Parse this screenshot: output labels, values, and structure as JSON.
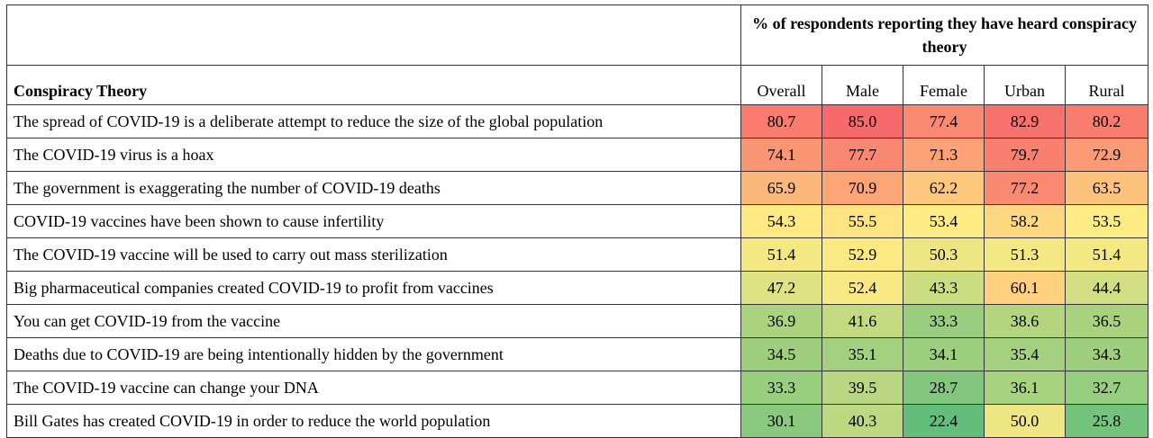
{
  "header": {
    "group_title": "% of respondents reporting they have heard conspiracy theory",
    "label_column": "Conspiracy Theory"
  },
  "chart_data": {
    "type": "table",
    "columns": [
      "Overall",
      "Male",
      "Female",
      "Urban",
      "Rural"
    ],
    "rows": [
      {
        "label": "The spread of COVID-19 is a deliberate attempt to reduce the size of the global population",
        "values": [
          "80.7",
          "85.0",
          "77.4",
          "82.9",
          "80.2"
        ]
      },
      {
        "label": "The COVID-19 virus is a hoax",
        "values": [
          "74.1",
          "77.7",
          "71.3",
          "79.7",
          "72.9"
        ]
      },
      {
        "label": "The government is exaggerating the number of COVID-19 deaths",
        "values": [
          "65.9",
          "70.9",
          "62.2",
          "77.2",
          "63.5"
        ]
      },
      {
        "label": "COVID-19 vaccines have been shown to cause infertility",
        "values": [
          "54.3",
          "55.5",
          "53.4",
          "58.2",
          "53.5"
        ]
      },
      {
        "label": "The COVID-19 vaccine will be used to carry out mass sterilization",
        "values": [
          "51.4",
          "52.9",
          "50.3",
          "51.3",
          "51.4"
        ]
      },
      {
        "label": "Big pharmaceutical companies created COVID-19 to profit from vaccines",
        "values": [
          "47.2",
          "52.4",
          "43.3",
          "60.1",
          "44.4"
        ]
      },
      {
        "label": "You can get COVID-19 from the vaccine",
        "values": [
          "36.9",
          "41.6",
          "33.3",
          "38.6",
          "36.5"
        ]
      },
      {
        "label": "Deaths due to COVID-19 are being intentionally hidden by the government",
        "values": [
          "34.5",
          "35.1",
          "34.1",
          "35.4",
          "34.3"
        ]
      },
      {
        "label": "The COVID-19 vaccine can change your DNA",
        "values": [
          "33.3",
          "39.5",
          "28.7",
          "36.1",
          "32.7"
        ]
      },
      {
        "label": "Bill Gates has created COVID-19 in order to reduce the world population",
        "values": [
          "30.1",
          "40.3",
          "22.4",
          "50.0",
          "25.8"
        ]
      }
    ],
    "color_scale": {
      "low": 22.4,
      "high": 85.0,
      "low_color": "#63be7b",
      "mid_color": "#ffeb84",
      "high_color": "#f8696b"
    }
  }
}
